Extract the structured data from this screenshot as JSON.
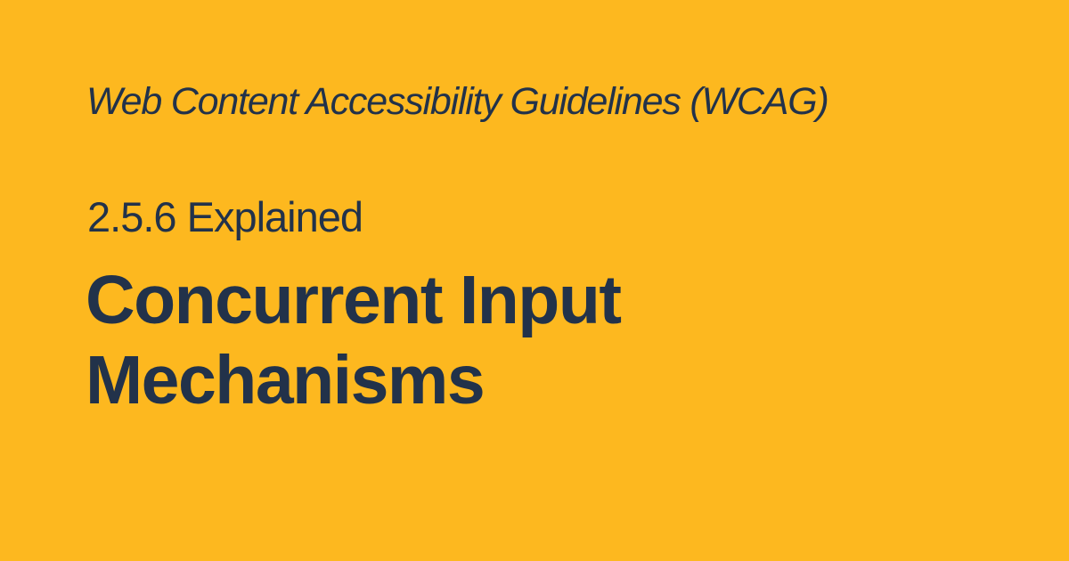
{
  "theme": {
    "background": "#FDB81F",
    "text": "#22324A"
  },
  "card": {
    "eyebrow": "Web Content Accessibility Guidelines (WCAG)",
    "kicker": "2.5.6 Explained",
    "title_lines": [
      "Concurrent Input",
      "Mechanisms"
    ]
  }
}
